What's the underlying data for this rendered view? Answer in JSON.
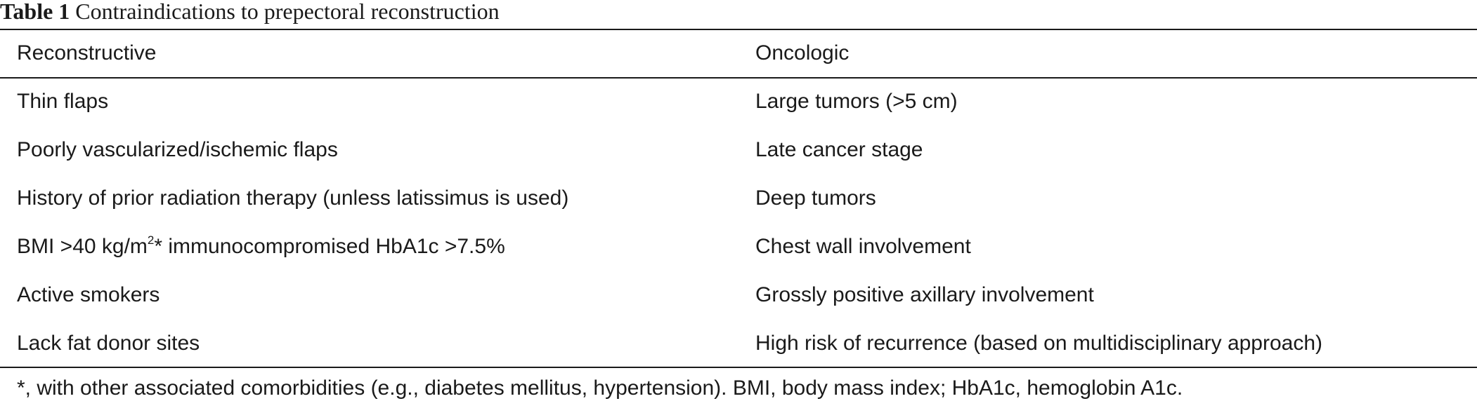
{
  "caption": {
    "label": "Table 1",
    "title": "Contraindications to prepectoral reconstruction"
  },
  "table": {
    "headers": [
      "Reconstructive",
      "Oncologic"
    ],
    "rows": [
      [
        "Thin flaps",
        "Large tumors (>5 cm)"
      ],
      [
        "Poorly vascularized/ischemic flaps",
        "Late cancer stage"
      ],
      [
        "History of prior radiation therapy (unless latissimus is used)",
        "Deep tumors"
      ],
      [
        {
          "pre": "BMI >40 kg/m",
          "sup": "2",
          "post": "* immunocompromised HbA1c >7.5%"
        },
        "Chest wall involvement"
      ],
      [
        "Active smokers",
        "Grossly positive axillary involvement"
      ],
      [
        "Lack fat donor sites",
        "High risk of recurrence (based on multidisciplinary approach)"
      ]
    ]
  },
  "footnote": "*, with other associated comorbidities (e.g., diabetes mellitus, hypertension). BMI, body mass index; HbA1c, hemoglobin A1c."
}
